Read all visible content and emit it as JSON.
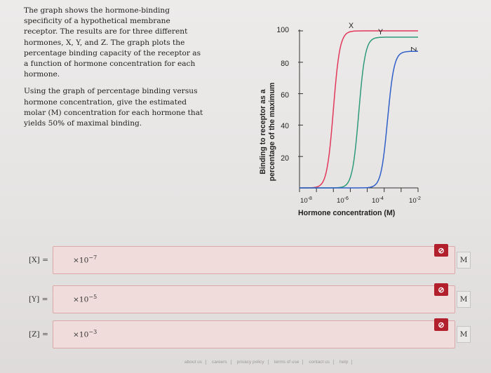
{
  "prompt": {
    "paragraph1": "The graph shows the hormone-binding specificity of a hypothetical membrane receptor. The results are for three different hormones, X, Y, and Z. The graph plots the percentage binding capacity of the receptor as a function of hormone concentration for each hormone.",
    "paragraph2": "Using the graph of percentage binding versus hormone concentration, give the estimated molar (M) concentration for each hormone that yields 50% of maximal binding."
  },
  "chart_data": {
    "type": "line",
    "ylabel_line1": "Binding to receptor as a",
    "ylabel_line2": "percentage of the maximum",
    "xlabel": "Hormone concentration (M)",
    "yticks": [
      "100",
      "80",
      "60",
      "40",
      "20"
    ],
    "ylim": [
      0,
      100
    ],
    "xticks": [
      {
        "base": "10",
        "exp": "-8"
      },
      {
        "base": "10",
        "exp": "-6"
      },
      {
        "base": "10",
        "exp": "-4"
      },
      {
        "base": "10",
        "exp": "-2"
      }
    ],
    "x_scale": "log",
    "xlim_exponent": [
      -9,
      -2
    ],
    "series": [
      {
        "name": "X",
        "color": "#e2385a",
        "midpoint_exponent": -7,
        "max": 100
      },
      {
        "name": "Y",
        "color": "#2e9a7a",
        "midpoint_exponent": -5.5,
        "max": 96
      },
      {
        "name": "Z",
        "color": "#2f5fc8",
        "midpoint_exponent": -3.8,
        "max": 87
      }
    ]
  },
  "answers": [
    {
      "var": "[X] =",
      "mult": "×10",
      "exp": "−7",
      "unit": "M",
      "flag": "⊘"
    },
    {
      "var": "[Y] =",
      "mult": "×10",
      "exp": "−5",
      "unit": "M",
      "flag": "⊘"
    },
    {
      "var": "[Z] =",
      "mult": "×10",
      "exp": "−3",
      "unit": "M",
      "flag": "⊘"
    }
  ],
  "footer": [
    "about us",
    "careers",
    "privacy policy",
    "terms of use",
    "contact us",
    "help"
  ]
}
